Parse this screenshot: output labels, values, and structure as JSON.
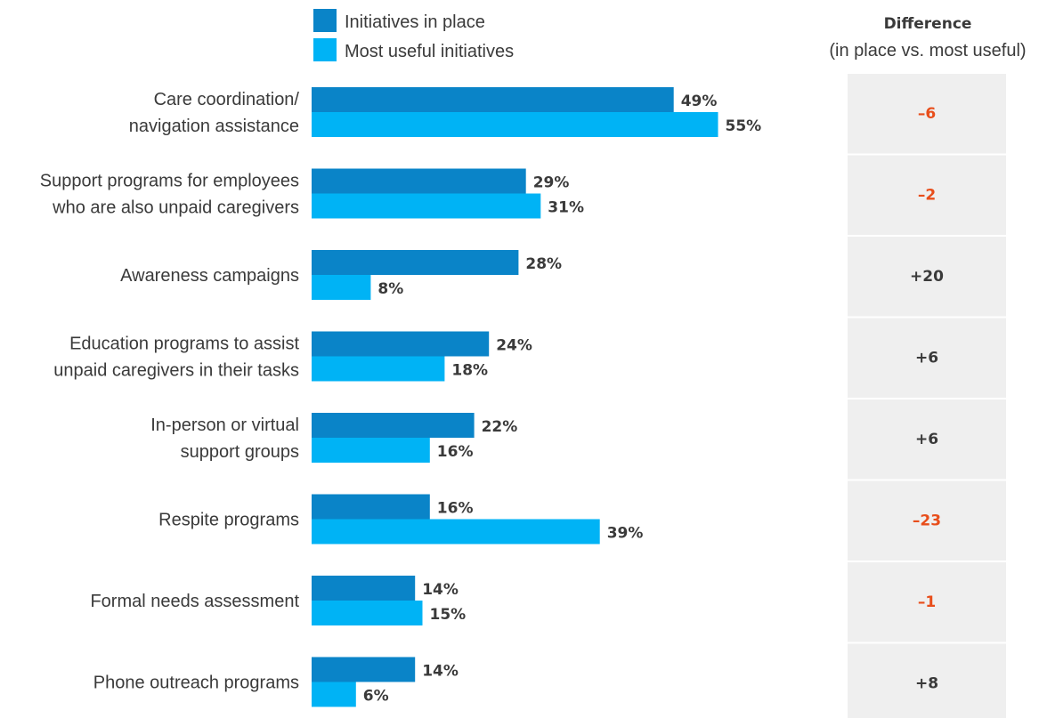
{
  "chart_data": {
    "type": "bar",
    "orientation": "horizontal",
    "categories": [
      [
        "Care coordination/",
        "navigation assistance"
      ],
      [
        "Support programs for employees",
        "who are also unpaid caregivers"
      ],
      [
        "Awareness campaigns"
      ],
      [
        "Education programs to assist",
        "unpaid caregivers in their tasks"
      ],
      [
        "In-person or virtual",
        "support groups"
      ],
      [
        "Respite programs"
      ],
      [
        "Formal needs assessment"
      ],
      [
        "Phone outreach programs"
      ]
    ],
    "series": [
      {
        "name": "Initiatives in place",
        "color": "#0a84c8",
        "values": [
          49,
          29,
          28,
          24,
          22,
          16,
          14,
          14
        ]
      },
      {
        "name": "Most useful initiatives",
        "color": "#00b3f5",
        "values": [
          55,
          31,
          8,
          18,
          16,
          39,
          15,
          6
        ]
      }
    ],
    "value_suffix": "%",
    "xlim": [
      0,
      100
    ],
    "legend_position": "top-left",
    "grid": false,
    "difference_panel": {
      "title": "Difference",
      "subtitle": "(in place vs. most useful)",
      "values": [
        "–6",
        "–2",
        "+20",
        "+6",
        "+6",
        "–23",
        "–1",
        "+8"
      ],
      "negative_color": "#e84e1b",
      "positive_color": "#3a3a3a",
      "background": "#efefef"
    }
  }
}
